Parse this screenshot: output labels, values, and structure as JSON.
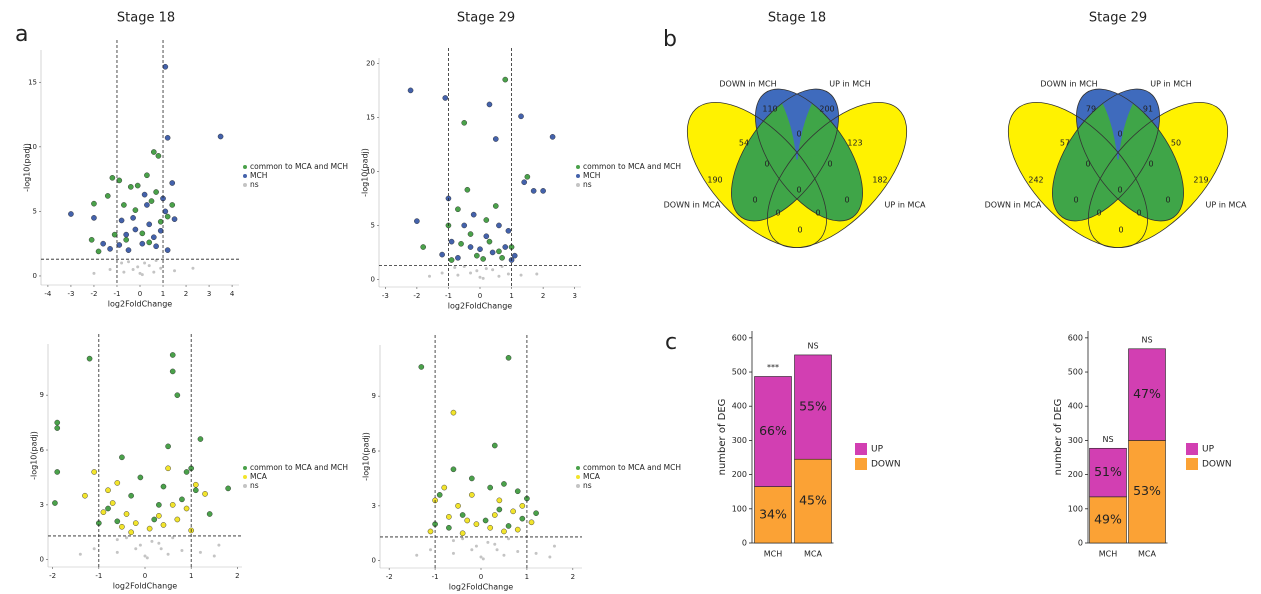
{
  "panel_labels": [
    "a",
    "b",
    "c"
  ],
  "chart_data": [
    {
      "type": "scatter",
      "title": "Stage 18",
      "xlabel": "log2FoldChange",
      "ylabel": "-log10(padj)",
      "xlim": [
        -4.3,
        4.3
      ],
      "ylim": [
        -0.7,
        17.5
      ],
      "xticks": [
        -4,
        -3,
        -2,
        -1,
        0,
        1,
        2,
        3,
        4
      ],
      "yticks": [
        0,
        5,
        10,
        15
      ],
      "vlines": [
        -1,
        1
      ],
      "hline": 1.3,
      "series": [
        {
          "name": "common to MCA and MCH",
          "color": "#4aa14a",
          "x": [
            0.8,
            0.6,
            1.4,
            -1.2,
            -0.9,
            -1.4,
            -0.4,
            0.3,
            -2.1,
            -1.8,
            -0.2,
            0.5,
            0.9,
            -0.7,
            0.1,
            -0.1,
            1.2,
            -1.1,
            0.4,
            0.7,
            -0.6,
            -2.0
          ],
          "y": [
            9.3,
            9.6,
            5.5,
            7.6,
            7.4,
            6.2,
            6.9,
            7.8,
            2.8,
            1.9,
            5.1,
            5.8,
            4.2,
            5.5,
            3.3,
            7.0,
            4.6,
            3.2,
            2.6,
            6.5,
            2.8,
            5.6
          ]
        },
        {
          "name": "MCH",
          "color": "#4462ab",
          "x": [
            3.5,
            1.1,
            1.2,
            -3.0,
            -2.0,
            1.5,
            1.0,
            -0.3,
            0.3,
            0.6,
            -0.6,
            0.1,
            0.9,
            -0.9,
            1.2,
            -1.3,
            0.4,
            -0.2,
            0.7,
            -0.5,
            1.4,
            -1.6,
            0.2,
            -0.8,
            1.1
          ],
          "y": [
            10.8,
            16.2,
            10.7,
            4.8,
            4.5,
            4.4,
            6.0,
            4.5,
            5.5,
            3.0,
            3.2,
            2.5,
            3.5,
            2.4,
            2.0,
            2.1,
            4.0,
            3.6,
            2.3,
            2.0,
            7.2,
            2.5,
            6.3,
            4.3,
            5.0
          ]
        },
        {
          "name": "ns",
          "color": "#c4c4c4",
          "x": [
            0,
            -0.3,
            0.4,
            0.6,
            -0.8,
            0.9,
            -0.5,
            0.2,
            1.5,
            -1.3,
            0.1,
            -0.1,
            2.3,
            -2.0,
            0.7,
            -0.7
          ],
          "y": [
            0.2,
            0.5,
            0.8,
            0.3,
            1.0,
            0.6,
            1.1,
            1.0,
            0.4,
            0.5,
            0.1,
            0.7,
            0.6,
            0.2,
            1.2,
            0.3
          ]
        }
      ]
    },
    {
      "type": "scatter",
      "title": "Stage 29",
      "xlabel": "log2FoldChange",
      "ylabel": "-log10(padj)",
      "xlim": [
        -3.2,
        3.2
      ],
      "ylim": [
        -0.7,
        20.5
      ],
      "xticks": [
        -3,
        -2,
        -1,
        0,
        1,
        2,
        3
      ],
      "yticks": [
        0,
        5,
        10,
        15,
        20
      ],
      "vlines": [
        -1,
        1
      ],
      "hline": 1.3,
      "series": [
        {
          "name": "common to MCA and MCH",
          "color": "#4aa14a",
          "x": [
            0.8,
            -0.5,
            1.5,
            -0.4,
            -0.7,
            0.5,
            -1.0,
            0.3,
            -0.1,
            0.7,
            -0.6,
            0.2,
            1.0,
            -0.9,
            0.1,
            -1.8,
            0.6,
            -0.3
          ],
          "y": [
            18.5,
            14.5,
            9.5,
            8.3,
            6.5,
            6.8,
            5.0,
            3.5,
            2.2,
            2.0,
            3.3,
            5.5,
            3.0,
            1.8,
            1.9,
            3.0,
            2.6,
            4.2
          ]
        },
        {
          "name": "MCH",
          "color": "#4462ab",
          "x": [
            -2.2,
            -1.1,
            0.3,
            1.3,
            0.5,
            2.3,
            2.0,
            1.7,
            -1.0,
            1.4,
            -0.5,
            0.2,
            -0.3,
            0.4,
            -0.7,
            0.8,
            1.1,
            0.6,
            -0.9,
            -1.2,
            0,
            0.9,
            -0.2,
            1.0,
            -2.0
          ],
          "y": [
            17.5,
            16.8,
            16.2,
            15.1,
            13,
            13.2,
            8.2,
            8.2,
            7.5,
            9,
            5,
            4,
            3,
            2.5,
            2,
            3,
            2.2,
            5,
            3.5,
            2.3,
            2.8,
            4.5,
            6,
            1.8,
            5.4
          ]
        },
        {
          "name": "ns",
          "color": "#c4c4c4",
          "x": [
            0,
            -0.3,
            0.4,
            0.6,
            -0.8,
            0.9,
            -0.5,
            0.2,
            1.3,
            -1.2,
            0.1,
            -0.1,
            1.8,
            -1.6,
            0.7,
            -0.7
          ],
          "y": [
            0.2,
            0.6,
            0.9,
            0.3,
            1.1,
            0.5,
            1.2,
            1.0,
            0.4,
            0.6,
            0.1,
            0.8,
            0.5,
            0.3,
            1.2,
            0.4
          ]
        }
      ]
    },
    {
      "type": "scatter",
      "xlabel": "log2FoldChange",
      "ylabel": "-log10(padj)",
      "xlim": [
        -2.1,
        2.1
      ],
      "ylim": [
        -0.4,
        11.8
      ],
      "xticks": [
        -2,
        -1,
        0,
        1,
        2
      ],
      "yticks": [
        0,
        3,
        6,
        9
      ],
      "vlines": [
        -1,
        1
      ],
      "hline": 1.3,
      "series": [
        {
          "name": "common to MCA and MCH",
          "color": "#4aa14a",
          "x": [
            -1.9,
            -1.9,
            -1.9,
            -1.95,
            -1.2,
            0.6,
            0.6,
            0.7,
            1.2,
            1.0,
            0.9,
            0.5,
            -0.5,
            -0.3,
            0.3,
            0.8,
            -0.8,
            1.4,
            -1.0,
            0.2,
            -0.1,
            0.4,
            1.1,
            -0.6,
            1.8
          ],
          "y": [
            7.5,
            7.2,
            4.8,
            3.1,
            11,
            11.2,
            10.3,
            9,
            6.6,
            5.0,
            4.8,
            6.2,
            5.6,
            3.5,
            3,
            3.3,
            2.8,
            2.5,
            2.0,
            2.2,
            4.5,
            4.0,
            3.8,
            2.1,
            3.9
          ]
        },
        {
          "name": "MCA",
          "color": "#f2e42c",
          "x": [
            -1.1,
            -0.8,
            -0.6,
            0.5,
            1.1,
            -0.9,
            -0.4,
            0.3,
            0.7,
            -0.2,
            0.1,
            -0.5,
            0.4,
            -0.7,
            0.9,
            1.3,
            -1.3,
            0.6,
            -0.3,
            1.0
          ],
          "y": [
            4.8,
            3.8,
            4.2,
            5.0,
            4.1,
            2.6,
            2.5,
            2.4,
            2.2,
            2.0,
            1.7,
            1.8,
            1.9,
            3.1,
            2.8,
            3.6,
            3.5,
            3.0,
            1.5,
            1.6
          ]
        },
        {
          "name": "ns",
          "color": "#c4c4c4",
          "x": [
            0,
            -0.2,
            0.3,
            0.5,
            -0.6,
            0.8,
            -0.4,
            0.15,
            1.2,
            -1.1,
            0.05,
            -0.1,
            1.5,
            -1.4,
            0.6,
            -0.6,
            1.6,
            0.35
          ],
          "y": [
            0.2,
            0.6,
            0.9,
            0.3,
            1.1,
            0.5,
            1.2,
            1.0,
            0.4,
            0.6,
            0.1,
            0.8,
            0.2,
            0.3,
            1.2,
            0.4,
            0.8,
            0.6
          ]
        }
      ]
    },
    {
      "type": "scatter",
      "xlabel": "log2FoldChange",
      "ylabel": "-log10(padj)",
      "xlim": [
        -2.2,
        2.2
      ],
      "ylim": [
        -0.4,
        11.8
      ],
      "xticks": [
        -2,
        -1,
        0,
        1,
        2
      ],
      "yticks": [
        0,
        3,
        6,
        9
      ],
      "vlines": [
        -1,
        1
      ],
      "hline": 1.3,
      "series": [
        {
          "name": "common to MCA and MCH",
          "color": "#4aa14a",
          "x": [
            -1.3,
            0.6,
            0.3,
            0.5,
            0.8,
            1.0,
            -0.6,
            -0.2,
            0.2,
            -0.9,
            0.4,
            -0.4,
            0.9,
            -1.0,
            0.1,
            -0.7,
            1.2,
            0.6
          ],
          "y": [
            10.6,
            11.1,
            6.3,
            4.2,
            3.8,
            3.4,
            5.0,
            4.5,
            4.0,
            3.6,
            2.8,
            2.5,
            2.3,
            2.0,
            2.2,
            1.8,
            2.6,
            1.9
          ]
        },
        {
          "name": "MCA",
          "color": "#f2e42c",
          "x": [
            -0.6,
            -0.8,
            -1.0,
            -0.5,
            -0.3,
            0.2,
            0.4,
            0.7,
            -0.1,
            0.5,
            -0.7,
            0.8,
            -0.4,
            1.1,
            -1.1,
            0.3,
            0.9,
            -0.2
          ],
          "y": [
            8.1,
            4.0,
            3.3,
            3.0,
            2.2,
            1.8,
            3.3,
            2.7,
            2.0,
            1.6,
            2.4,
            1.7,
            1.5,
            2.1,
            1.6,
            2.5,
            3.0,
            3.6
          ]
        },
        {
          "name": "ns",
          "color": "#c4c4c4",
          "x": [
            0,
            -0.2,
            0.3,
            0.5,
            -0.6,
            0.8,
            -0.4,
            0.15,
            1.2,
            -1.1,
            0.05,
            -0.1,
            1.5,
            -1.4,
            0.6,
            -0.6,
            1.6,
            0.35
          ],
          "y": [
            0.2,
            0.6,
            0.9,
            0.3,
            1.1,
            0.5,
            1.2,
            1.0,
            0.4,
            0.6,
            0.1,
            0.8,
            0.2,
            0.3,
            1.2,
            0.4,
            0.8,
            0.6
          ]
        }
      ]
    },
    {
      "type": "venn",
      "title": "Stage 18",
      "sets": [
        "DOWN in MCH",
        "UP in MCH",
        "DOWN in MCA",
        "UP in MCA"
      ],
      "values": [
        190,
        110,
        200,
        182,
        54,
        0,
        123,
        0,
        0,
        0,
        0,
        0,
        0,
        0,
        0
      ]
    },
    {
      "type": "venn",
      "title": "Stage 29",
      "sets": [
        "DOWN in MCH",
        "UP in MCH",
        "DOWN in MCA",
        "UP in MCA"
      ],
      "values": [
        242,
        79,
        91,
        219,
        57,
        0,
        50,
        0,
        0,
        0,
        0,
        0,
        0,
        0,
        0
      ]
    },
    {
      "type": "bar",
      "stacked": true,
      "ylabel": "number of DEG",
      "categories": [
        "MCH",
        "MCA"
      ],
      "ylim": [
        0,
        620
      ],
      "yticks": [
        0,
        100,
        200,
        300,
        400,
        500,
        600
      ],
      "annotations": [
        "***",
        "NS"
      ],
      "series": [
        {
          "name": "DOWN",
          "color": "#fba235",
          "values": [
            165,
            245
          ],
          "labels": [
            "34%",
            "45%"
          ]
        },
        {
          "name": "UP",
          "color": "#d23fb2",
          "values": [
            322,
            305
          ],
          "labels": [
            "66%",
            "55%"
          ]
        }
      ]
    },
    {
      "type": "bar",
      "stacked": true,
      "ylabel": "number of DEG",
      "categories": [
        "MCH",
        "MCA"
      ],
      "ylim": [
        0,
        620
      ],
      "yticks": [
        0,
        100,
        200,
        300,
        400,
        500,
        600
      ],
      "annotations": [
        "NS",
        "NS"
      ],
      "series": [
        {
          "name": "DOWN",
          "color": "#fba235",
          "values": [
            135,
            300
          ],
          "labels": [
            "49%",
            "53%"
          ]
        },
        {
          "name": "UP",
          "color": "#d23fb2",
          "values": [
            142,
            268
          ],
          "labels": [
            "51%",
            "47%"
          ]
        }
      ]
    }
  ]
}
